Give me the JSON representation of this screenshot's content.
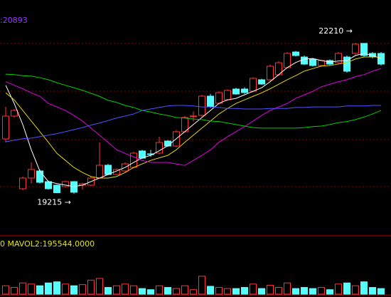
{
  "chart_data": {
    "type": "candlestick",
    "corner_text": ":20893",
    "corner_color": "#9933ff",
    "up_color": "#ff3232",
    "down_color": "#54ffff",
    "ylim": [
      18400,
      23060
    ],
    "open": [
      20307,
      20758,
      19318,
      19530,
      19671,
      19459,
      19389,
      19361,
      19459,
      19389,
      19389,
      19530,
      19784,
      19601,
      19671,
      19742,
      20067,
      20010,
      20024,
      20264,
      20165,
      20448,
      20758,
      20773,
      21154,
      21013,
      21083,
      21295,
      21295,
      21253,
      21479,
      21479,
      21577,
      21719,
      22029,
      21930,
      21888,
      21761,
      21860,
      21817,
      21930,
      22001,
      22200,
      22001,
      22001
    ],
    "high": [
      20942,
      20900,
      19560,
      19841,
      19700,
      19480,
      19400,
      19480,
      19470,
      19440,
      19560,
      20236,
      19810,
      19720,
      19840,
      20050,
      20090,
      20090,
      20350,
      20280,
      20480,
      20760,
      20850,
      21180,
      21200,
      21250,
      21290,
      21320,
      21330,
      21530,
      21500,
      21780,
      21850,
      22030,
      22050,
      21960,
      21910,
      21880,
      21880,
      22030,
      21960,
      22210,
      22205,
      22030,
      22030
    ],
    "low": [
      20236,
      20730,
      19290,
      19420,
      19420,
      19300,
      19230,
      19340,
      19215,
      19300,
      19370,
      19510,
      19590,
      19590,
      19650,
      19720,
      19910,
      19950,
      20000,
      20150,
      20140,
      20430,
      20650,
      20750,
      20920,
      20990,
      21060,
      21180,
      21200,
      21230,
      21380,
      21450,
      21550,
      21700,
      21940,
      21770,
      21740,
      21740,
      21770,
      21800,
      21620,
      21980,
      21940,
      21900,
      21760
    ],
    "close": [
      20758,
      20871,
      19530,
      19700,
      19445,
      19318,
      19240,
      19459,
      19248,
      19417,
      19530,
      19784,
      19601,
      19700,
      19812,
      20024,
      19925,
      20000,
      20236,
      20165,
      20448,
      20730,
      20760,
      21154,
      20942,
      21224,
      21267,
      21196,
      21224,
      21507,
      21394,
      21747,
      21817,
      22001,
      21959,
      21789,
      21761,
      21860,
      21789,
      22001,
      21648,
      22185,
      21959,
      21930,
      21789
    ],
    "lines": [
      {
        "color": "#ffffff",
        "values": [
          21370,
          21010,
          20590,
          20090,
          19670,
          19460,
          19420,
          19390,
          19360,
          19390,
          19460,
          19530,
          19600,
          19670,
          19740,
          19840,
          19930,
          19980,
          20070,
          20170,
          20310,
          20450,
          20590,
          20730,
          20870,
          21010,
          21080,
          21110,
          21180,
          21250,
          21320,
          21440,
          21580,
          21720,
          21820,
          21890,
          21900,
          21860,
          21830,
          21850,
          21860,
          21960,
          22000,
          21960,
          21900
        ]
      },
      {
        "color": "#e6d800",
        "values": [
          21220,
          21080,
          20870,
          20660,
          20450,
          20240,
          20020,
          19880,
          19740,
          19640,
          19560,
          19530,
          19530,
          19560,
          19640,
          19740,
          19810,
          19880,
          19930,
          19980,
          20090,
          20240,
          20380,
          20520,
          20660,
          20800,
          20910,
          21010,
          21080,
          21150,
          21220,
          21300,
          21390,
          21480,
          21560,
          21650,
          21700,
          21750,
          21760,
          21790,
          21820,
          21890,
          21930,
          21930,
          21930
        ]
      },
      {
        "color": "#e000e0",
        "values": [
          21440,
          21370,
          21300,
          21220,
          21150,
          21010,
          20940,
          20870,
          20770,
          20660,
          20520,
          20380,
          20240,
          20090,
          20020,
          19950,
          19880,
          19840,
          19840,
          19840,
          19810,
          19780,
          19880,
          19980,
          20090,
          20240,
          20350,
          20450,
          20550,
          20660,
          20770,
          20870,
          20940,
          21010,
          21110,
          21180,
          21250,
          21340,
          21390,
          21440,
          21480,
          21540,
          21580,
          21650,
          21700
        ]
      },
      {
        "color": "#00d000",
        "values": [
          21590,
          21580,
          21560,
          21550,
          21520,
          21480,
          21420,
          21370,
          21320,
          21270,
          21210,
          21150,
          21070,
          21030,
          20970,
          20930,
          20870,
          20840,
          20800,
          20770,
          20730,
          20720,
          20700,
          20690,
          20660,
          20650,
          20620,
          20590,
          20560,
          20530,
          20520,
          20520,
          20520,
          20520,
          20520,
          20530,
          20550,
          20560,
          20590,
          20630,
          20650,
          20690,
          20740,
          20800,
          20870
        ]
      },
      {
        "color": "#5050ff",
        "values": [
          20250,
          20280,
          20310,
          20320,
          20350,
          20380,
          20410,
          20450,
          20490,
          20530,
          20580,
          20620,
          20670,
          20720,
          20760,
          20800,
          20870,
          20900,
          20930,
          20960,
          20970,
          20970,
          20960,
          20940,
          20940,
          20930,
          20910,
          20910,
          20900,
          20900,
          20900,
          20910,
          20910,
          20910,
          20930,
          20930,
          20940,
          20940,
          20940,
          20940,
          20960,
          20960,
          20960,
          20970,
          20970
        ]
      }
    ],
    "annotations": [
      {
        "text": "22210 →",
        "index": 41,
        "value": 22210
      },
      {
        "text": "19215 →",
        "index": 8,
        "value": 19215
      }
    ],
    "volume": {
      "label": "0 MAVOL2:195544.0000",
      "label_color": "#e6e600",
      "ylim": [
        0,
        1200000
      ],
      "values": [
        225000,
        180000,
        300000,
        270000,
        225000,
        300000,
        330000,
        270000,
        225000,
        255000,
        375000,
        420000,
        180000,
        225000,
        270000,
        225000,
        150000,
        120000,
        225000,
        180000,
        150000,
        225000,
        120000,
        480000,
        210000,
        180000,
        150000,
        150000,
        180000,
        270000,
        150000,
        240000,
        180000,
        300000,
        150000,
        180000,
        150000,
        180000,
        120000,
        270000,
        300000,
        225000,
        330000,
        180000,
        150000
      ]
    }
  }
}
